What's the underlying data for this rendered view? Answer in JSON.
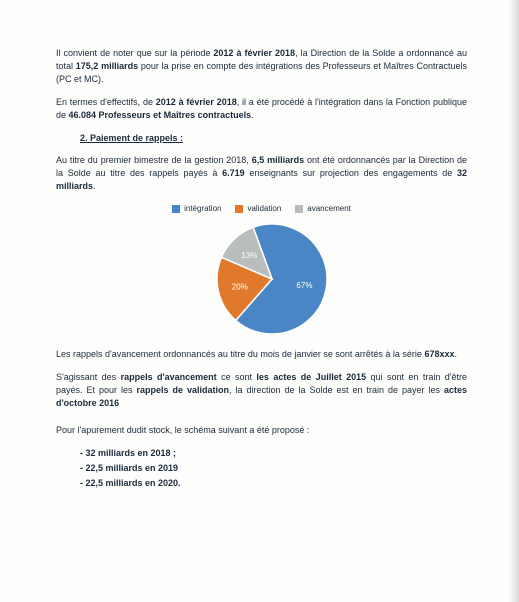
{
  "para1": {
    "t1": "Il convient de noter que sur la période ",
    "bold1": "2012 à février 2018",
    "t2": ", la Direction de la Solde a ordonnancé au total ",
    "bold2": "175,2 milliards",
    "t3": " pour la prise en compte des intégrations des Professeurs et Maîtres Contractuels (PC et MC)."
  },
  "para2": {
    "t1": "En termes d'effectifs, de ",
    "bold1": "2012 à février 2018",
    "t2": ", il a été procédé à l'intégration dans la Fonction publique de ",
    "bold2": "46.084 Professeurs et Maîtres contractuels",
    "t3": "."
  },
  "heading": "2. Paiement de rappels :",
  "para3": {
    "t1": "Au titre du premier bimestre de la gestion 2018, ",
    "bold1": "6,5 milliards",
    "t2": " ont été ordonnancés par la Direction de la Solde au titre des rappels payés à ",
    "bold2": "6.719",
    "t3": " enseignants sur projection des engagements de ",
    "bold3": "32 milliards",
    "t4": "."
  },
  "chart": {
    "type": "pie",
    "legend": [
      "intégration",
      "validation",
      "avancement"
    ],
    "slices": [
      {
        "label": "67%",
        "value": 67,
        "color": "#4a86c5"
      },
      {
        "label": "20%",
        "value": 20,
        "color": "#e0792b"
      },
      {
        "label": "13%",
        "value": 13,
        "color": "#b9bdbd"
      }
    ],
    "legend_colors": [
      "#4a86c5",
      "#e0792b",
      "#b9bdbd"
    ],
    "label_color": "#ffffff",
    "label_fontsize": 8,
    "outline_color": "#ffffff",
    "outline_width": 1.5,
    "radius": 55
  },
  "para4": {
    "t1": "Les rappels d'avancement ordonnancés au titre du mois de janvier se sont arrêtés à la série ",
    "bold1": "678xxx",
    "t2": "."
  },
  "para5": {
    "t1": "S'agissant des ",
    "bold1": "rappels d'avancement",
    "t2": " ce sont ",
    "bold2": "les actes de Juillet 2015",
    "t3": " qui sont en train d'être payés. Et pour les ",
    "bold3": "rappels de validation",
    "t4": ", la direction de la Solde est en train de payer les ",
    "bold4": "actes d'octobre 2016"
  },
  "para6": "Pour l'apurement dudit stock,  le schéma suivant  a été proposé :",
  "bullets": [
    "32 milliards en 2018 ;",
    "22,5 milliards en 2019",
    "22,5 milliards en 2020."
  ]
}
